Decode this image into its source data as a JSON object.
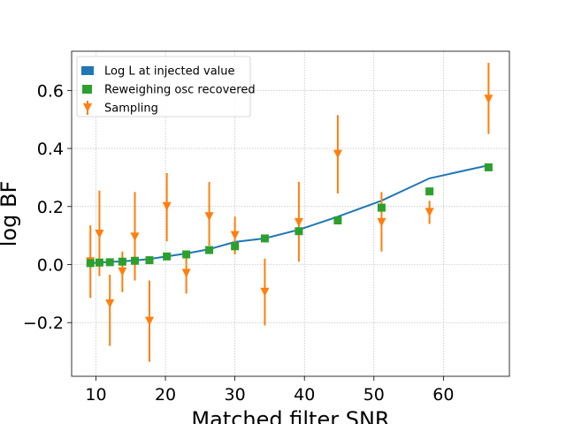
{
  "chart_data": {
    "type": "scatter",
    "xlabel": "Matched filter SNR",
    "ylabel": "log BF",
    "xlim": [
      6.5,
      69.5
    ],
    "ylim": [
      -0.385,
      0.735
    ],
    "xticks": [
      10,
      20,
      30,
      40,
      50,
      60
    ],
    "yticks": [
      -0.2,
      0.0,
      0.2,
      0.4,
      0.6
    ],
    "ytick_labels": [
      "−0.2",
      "0.0",
      "0.2",
      "0.4",
      "0.6"
    ],
    "grid": true,
    "legend_position": "top-left",
    "series": [
      {
        "name": "Log L at injected value",
        "kind": "line",
        "color": "#1f77b4",
        "x": [
          9.2,
          10.5,
          12.0,
          13.8,
          15.6,
          17.7,
          20.2,
          23.0,
          26.3,
          30.0,
          34.3,
          39.2,
          44.8,
          51.1,
          58.0,
          66.5
        ],
        "y": [
          0.005,
          0.007,
          0.009,
          0.011,
          0.014,
          0.019,
          0.028,
          0.038,
          0.053,
          0.078,
          0.09,
          0.12,
          0.165,
          0.22,
          0.297,
          0.342
        ]
      },
      {
        "name": "Reweighing osc recovered",
        "kind": "square",
        "color": "#2ca02c",
        "x": [
          9.2,
          10.5,
          12.0,
          13.8,
          15.6,
          17.7,
          20.2,
          23.0,
          26.3,
          30.0,
          34.3,
          39.2,
          44.8,
          51.1,
          58.0,
          66.5
        ],
        "y": [
          0.005,
          0.007,
          0.008,
          0.01,
          0.013,
          0.015,
          0.028,
          0.035,
          0.05,
          0.063,
          0.09,
          0.115,
          0.152,
          0.196,
          0.252,
          0.335
        ]
      },
      {
        "name": "Sampling",
        "kind": "errorbar",
        "color": "#ff7f0e",
        "x": [
          9.2,
          10.5,
          12.0,
          13.8,
          15.6,
          17.7,
          20.2,
          23.0,
          26.3,
          30.0,
          34.3,
          39.2,
          44.8,
          51.1,
          58.0,
          66.5
        ],
        "y": [
          0.01,
          0.105,
          -0.135,
          -0.025,
          0.095,
          -0.195,
          0.2,
          -0.03,
          0.165,
          0.1,
          -0.095,
          0.145,
          0.38,
          0.145,
          0.18,
          0.57
        ],
        "yerr_low": [
          0.125,
          0.145,
          0.145,
          0.07,
          0.15,
          0.14,
          0.12,
          0.07,
          0.1,
          0.065,
          0.115,
          0.135,
          0.135,
          0.1,
          0.04,
          0.12
        ],
        "yerr_high": [
          0.125,
          0.15,
          0.1,
          0.07,
          0.155,
          0.14,
          0.115,
          0.06,
          0.12,
          0.065,
          0.115,
          0.14,
          0.135,
          0.105,
          0.04,
          0.125
        ]
      }
    ]
  }
}
